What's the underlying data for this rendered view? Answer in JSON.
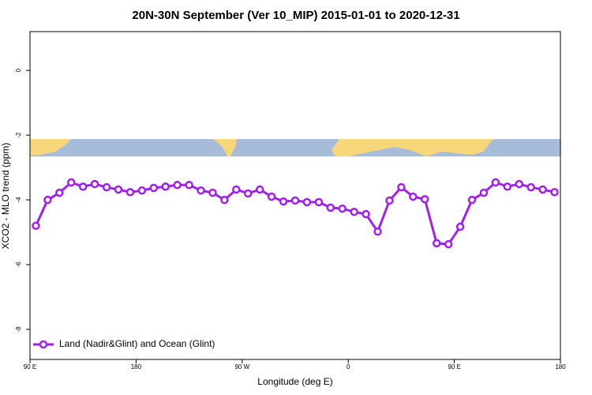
{
  "chart_data": {
    "type": "line",
    "title": "20N-30N September (Ver 10_MIP)   2015-01-01 to 2020-12-31",
    "x_label": "Longitude (deg E)",
    "y_label": "XCO2 - MLO trend (ppm)",
    "x": [
      95,
      105,
      115,
      125,
      135,
      145,
      155,
      165,
      175,
      185,
      195,
      205,
      215,
      225,
      235,
      245,
      255,
      265,
      275,
      285,
      295,
      305,
      315,
      325,
      335,
      345,
      355,
      365,
      375,
      385,
      395,
      405,
      415,
      425,
      435,
      445,
      455,
      465,
      475,
      485,
      495,
      505,
      515,
      525,
      535
    ],
    "series": [
      {
        "name": "Land (Nadir&Glint) and Ocean (Glint)",
        "color": "#a020f0",
        "values": [
          -4.8,
          -4.0,
          -3.78,
          -3.46,
          -3.59,
          -3.51,
          -3.61,
          -3.68,
          -3.76,
          -3.71,
          -3.63,
          -3.59,
          -3.54,
          -3.54,
          -3.71,
          -3.78,
          -4.0,
          -3.68,
          -3.8,
          -3.68,
          -3.9,
          -4.05,
          -4.02,
          -4.07,
          -4.07,
          -4.24,
          -4.27,
          -4.37,
          -4.44,
          -4.98,
          -4.02,
          -3.61,
          -3.9,
          -3.98,
          -5.34,
          -5.37,
          -4.83,
          -4.0,
          -3.78,
          -3.46,
          -3.59,
          -3.51,
          -3.61,
          -3.68,
          -3.76
        ]
      }
    ],
    "xlim": [
      90,
      540
    ],
    "xticks": [
      {
        "value": 90,
        "label": "90 E"
      },
      180,
      {
        "value": 270,
        "label": "90 W"
      },
      {
        "value": 360,
        "label": "0"
      },
      {
        "value": 450,
        "label": "90 E"
      },
      {
        "value": 540,
        "label": "180"
      }
    ],
    "ylim": [
      -8.93,
      1.2
    ],
    "yticks": [
      -8,
      -6,
      -4,
      -2,
      0
    ],
    "legend": "bottom-left"
  }
}
